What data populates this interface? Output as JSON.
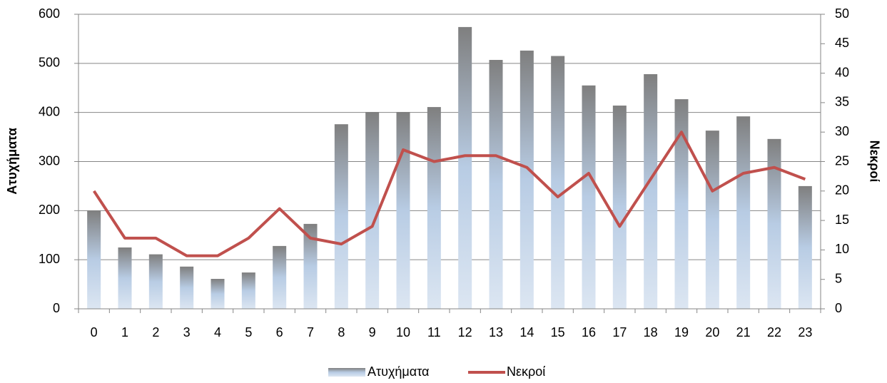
{
  "chart_data": {
    "type": "bar_line",
    "categories": [
      "0",
      "1",
      "2",
      "3",
      "4",
      "5",
      "6",
      "7",
      "8",
      "9",
      "10",
      "11",
      "12",
      "13",
      "14",
      "15",
      "16",
      "17",
      "18",
      "19",
      "20",
      "21",
      "22",
      "23"
    ],
    "series": [
      {
        "name": "Ατυχήματα",
        "color": "#7f7f7f",
        "type": "bar",
        "values": [
          200,
          125,
          111,
          86,
          61,
          74,
          128,
          173,
          376,
          401,
          401,
          411,
          574,
          507,
          526,
          515,
          455,
          414,
          478,
          427,
          363,
          392,
          346,
          250
        ]
      },
      {
        "name": "Νεκροί",
        "color": "#c0504d",
        "type": "line",
        "axis": "y2",
        "values": [
          20,
          12,
          12,
          9,
          9,
          12,
          17,
          12,
          11,
          14,
          27,
          25,
          26,
          26,
          24,
          19,
          23,
          14,
          22,
          30,
          20,
          23,
          24,
          22
        ]
      }
    ],
    "y_label": "Ατυχήματα",
    "y2_label": "Νεκροί",
    "ylim": [
      0,
      600
    ],
    "yticks": [
      0,
      100,
      200,
      300,
      400,
      500,
      600
    ],
    "y2lim": [
      0,
      50
    ],
    "y2ticks": [
      0,
      5,
      10,
      15,
      20,
      25,
      30,
      35,
      40,
      45,
      50
    ],
    "grid": true,
    "legend": "bottom"
  }
}
